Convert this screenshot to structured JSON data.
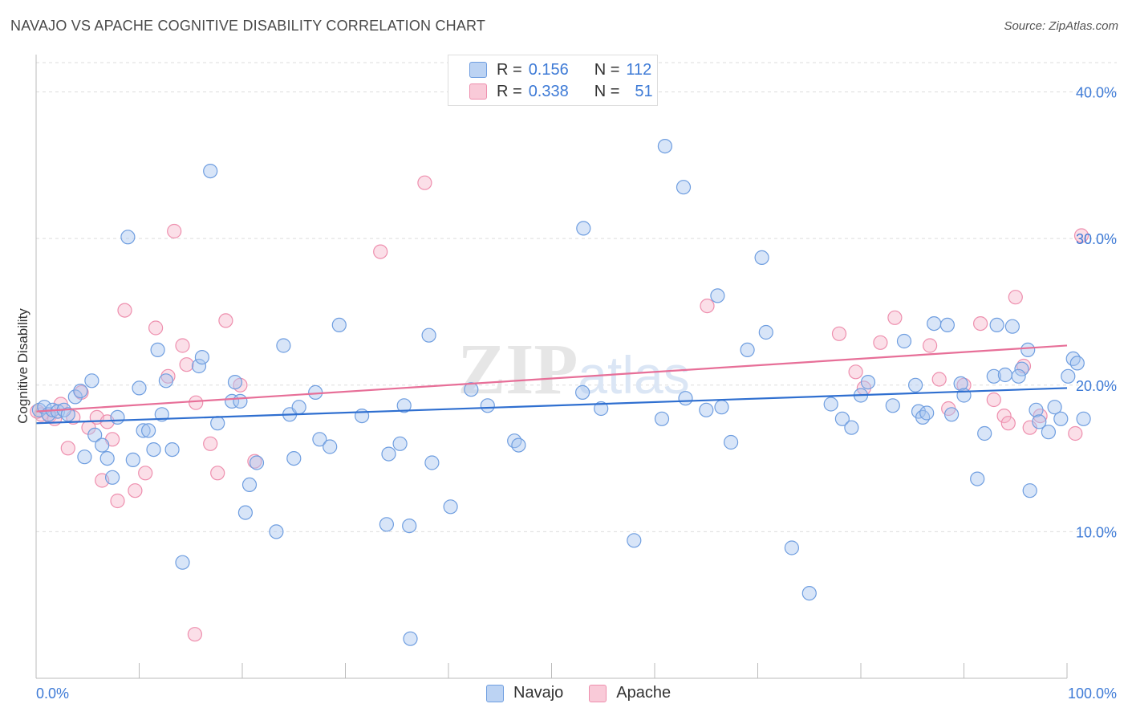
{
  "title": "NAVAJO VS APACHE COGNITIVE DISABILITY CORRELATION CHART",
  "source": "Source: ZipAtlas.com",
  "watermark": "ZIPatlas",
  "legend": {
    "rows": [
      {
        "r_label": "R =",
        "r_value": "0.156",
        "n_label": "N =",
        "n_value": "112"
      },
      {
        "r_label": "R =",
        "r_value": "0.338",
        "n_label": "N =",
        "n_value": "51"
      }
    ]
  },
  "bottom_legend": [
    "Navajo",
    "Apache"
  ],
  "colors": {
    "navajo_fill": "#a9c6f0",
    "navajo_stroke": "#6f9ee0",
    "navajo_line": "#2f6fd0",
    "apache_fill": "#f7b8cb",
    "apache_stroke": "#ee8fae",
    "apache_line": "#e76f98",
    "tick_label": "#3d7ad6",
    "grid": "#dddddd"
  },
  "chart_data": {
    "type": "scatter",
    "title": "NAVAJO VS APACHE COGNITIVE DISABILITY CORRELATION CHART",
    "xlabel": "",
    "ylabel": "Cognitive Disability",
    "xlim": [
      0,
      100
    ],
    "ylim": [
      0,
      42
    ],
    "x_tick_labels": [
      "0.0%",
      "100.0%"
    ],
    "y_ticks": [
      10,
      20,
      30,
      40
    ],
    "y_tick_labels": [
      "10.0%",
      "20.0%",
      "30.0%",
      "40.0%"
    ],
    "grid": true,
    "legend_position": "top-center",
    "series": [
      {
        "name": "Navajo",
        "trend": {
          "x": [
            0,
            100
          ],
          "y": [
            17.4,
            19.8
          ]
        },
        "points": [
          [
            0.3,
            18.3
          ],
          [
            0.8,
            18.5
          ],
          [
            1.2,
            18.0
          ],
          [
            1.6,
            18.3
          ],
          [
            2.1,
            18.2
          ],
          [
            2.7,
            18.3
          ],
          [
            3.1,
            18.0
          ],
          [
            3.8,
            19.2
          ],
          [
            4.3,
            19.6
          ],
          [
            4.7,
            15.1
          ],
          [
            5.4,
            20.3
          ],
          [
            5.7,
            16.6
          ],
          [
            6.4,
            15.9
          ],
          [
            6.9,
            15.0
          ],
          [
            7.4,
            13.7
          ],
          [
            7.9,
            17.8
          ],
          [
            8.9,
            30.1
          ],
          [
            9.4,
            14.9
          ],
          [
            10.0,
            19.8
          ],
          [
            10.4,
            16.9
          ],
          [
            10.9,
            16.9
          ],
          [
            11.4,
            15.6
          ],
          [
            11.8,
            22.4
          ],
          [
            12.2,
            18.0
          ],
          [
            12.6,
            20.3
          ],
          [
            13.2,
            15.6
          ],
          [
            14.2,
            7.9
          ],
          [
            15.8,
            21.3
          ],
          [
            16.1,
            21.9
          ],
          [
            16.9,
            34.6
          ],
          [
            17.6,
            17.4
          ],
          [
            19.0,
            18.9
          ],
          [
            19.3,
            20.2
          ],
          [
            19.8,
            18.9
          ],
          [
            20.3,
            11.3
          ],
          [
            20.7,
            13.2
          ],
          [
            21.4,
            14.7
          ],
          [
            23.3,
            10.0
          ],
          [
            24.0,
            22.7
          ],
          [
            24.6,
            18.0
          ],
          [
            25.0,
            15.0
          ],
          [
            25.5,
            18.5
          ],
          [
            27.1,
            19.5
          ],
          [
            27.5,
            16.3
          ],
          [
            28.5,
            15.8
          ],
          [
            29.4,
            24.1
          ],
          [
            31.6,
            17.9
          ],
          [
            34.2,
            15.3
          ],
          [
            34.0,
            10.5
          ],
          [
            35.3,
            16.0
          ],
          [
            35.7,
            18.6
          ],
          [
            36.2,
            10.4
          ],
          [
            36.3,
            2.7
          ],
          [
            38.1,
            23.4
          ],
          [
            38.4,
            14.7
          ],
          [
            40.2,
            11.7
          ],
          [
            42.2,
            19.7
          ],
          [
            43.8,
            18.6
          ],
          [
            46.4,
            16.2
          ],
          [
            46.8,
            15.9
          ],
          [
            53.1,
            30.7
          ],
          [
            53.0,
            19.5
          ],
          [
            54.8,
            18.4
          ],
          [
            58.0,
            9.4
          ],
          [
            61.0,
            36.3
          ],
          [
            60.7,
            17.7
          ],
          [
            62.8,
            33.5
          ],
          [
            63.0,
            19.1
          ],
          [
            65.0,
            18.3
          ],
          [
            66.1,
            26.1
          ],
          [
            66.5,
            18.5
          ],
          [
            67.4,
            16.1
          ],
          [
            69.0,
            22.4
          ],
          [
            70.4,
            28.7
          ],
          [
            70.8,
            23.6
          ],
          [
            73.3,
            8.9
          ],
          [
            75.0,
            5.8
          ],
          [
            77.1,
            18.7
          ],
          [
            78.2,
            17.7
          ],
          [
            79.1,
            17.1
          ],
          [
            80.0,
            19.3
          ],
          [
            80.7,
            20.2
          ],
          [
            83.1,
            18.6
          ],
          [
            84.2,
            23.0
          ],
          [
            85.6,
            18.2
          ],
          [
            85.3,
            20.0
          ],
          [
            86.0,
            17.8
          ],
          [
            87.1,
            24.2
          ],
          [
            88.4,
            24.1
          ],
          [
            88.8,
            18.0
          ],
          [
            89.7,
            20.1
          ],
          [
            90.0,
            19.3
          ],
          [
            91.3,
            13.6
          ],
          [
            92.0,
            16.7
          ],
          [
            92.9,
            20.6
          ],
          [
            93.2,
            24.1
          ],
          [
            94.0,
            20.7
          ],
          [
            94.7,
            24.0
          ],
          [
            95.6,
            21.1
          ],
          [
            95.3,
            20.6
          ],
          [
            96.2,
            22.4
          ],
          [
            97.0,
            18.3
          ],
          [
            97.3,
            17.5
          ],
          [
            98.2,
            16.8
          ],
          [
            98.8,
            18.5
          ],
          [
            99.4,
            17.7
          ],
          [
            100.1,
            20.6
          ],
          [
            100.6,
            21.8
          ],
          [
            101.0,
            21.5
          ],
          [
            101.6,
            17.7
          ],
          [
            96.4,
            12.8
          ],
          [
            86.4,
            18.1
          ]
        ]
      },
      {
        "name": "Apache",
        "trend": {
          "x": [
            0,
            100
          ],
          "y": [
            18.2,
            22.7
          ]
        },
        "points": [
          [
            0.5,
            18.0
          ],
          [
            1.3,
            17.9
          ],
          [
            1.8,
            17.7
          ],
          [
            2.4,
            18.7
          ],
          [
            3.1,
            15.7
          ],
          [
            3.6,
            17.8
          ],
          [
            4.4,
            19.5
          ],
          [
            5.1,
            17.1
          ],
          [
            5.9,
            17.8
          ],
          [
            6.4,
            13.5
          ],
          [
            6.9,
            17.5
          ],
          [
            7.4,
            16.3
          ],
          [
            7.9,
            12.1
          ],
          [
            8.6,
            25.1
          ],
          [
            9.6,
            12.8
          ],
          [
            10.6,
            14.0
          ],
          [
            11.6,
            23.9
          ],
          [
            12.8,
            20.6
          ],
          [
            13.4,
            30.5
          ],
          [
            14.2,
            22.7
          ],
          [
            14.6,
            21.4
          ],
          [
            15.5,
            18.8
          ],
          [
            16.9,
            16.0
          ],
          [
            17.6,
            14.0
          ],
          [
            18.4,
            24.4
          ],
          [
            19.8,
            20.0
          ],
          [
            21.2,
            14.8
          ],
          [
            15.4,
            3.0
          ],
          [
            33.4,
            29.1
          ],
          [
            37.7,
            33.8
          ],
          [
            65.1,
            25.4
          ],
          [
            77.9,
            23.5
          ],
          [
            79.5,
            20.9
          ],
          [
            80.3,
            19.8
          ],
          [
            81.9,
            22.9
          ],
          [
            83.3,
            24.6
          ],
          [
            86.7,
            22.7
          ],
          [
            87.6,
            20.4
          ],
          [
            88.5,
            18.4
          ],
          [
            90.0,
            20.0
          ],
          [
            91.6,
            24.2
          ],
          [
            92.9,
            19.0
          ],
          [
            93.9,
            17.9
          ],
          [
            95.0,
            26.0
          ],
          [
            95.8,
            21.3
          ],
          [
            96.4,
            17.1
          ],
          [
            97.4,
            17.9
          ],
          [
            100.8,
            16.7
          ],
          [
            101.4,
            30.2
          ],
          [
            94.3,
            17.4
          ],
          [
            0.1,
            18.2
          ]
        ]
      }
    ]
  }
}
